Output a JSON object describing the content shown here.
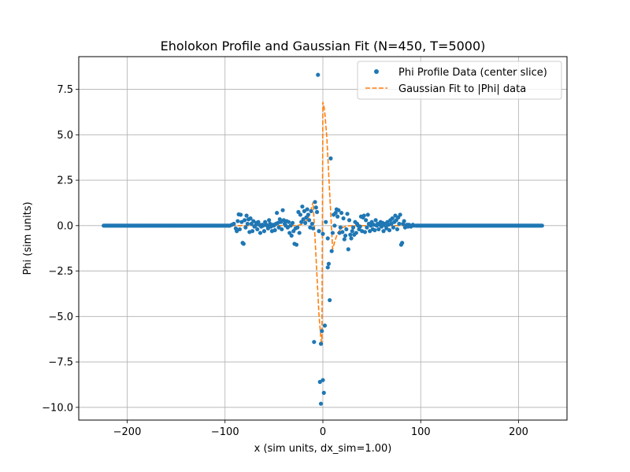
{
  "chart_data": {
    "type": "scatter",
    "title": "Eholokon Profile and Gaussian Fit (N=450, T=5000)",
    "xlabel": "x (sim units, dx_sim=1.00)",
    "ylabel": "Phi (sim units)",
    "xlim": [
      -249.5,
      249.5
    ],
    "ylim": [
      -10.7,
      9.3
    ],
    "xticks": [
      -200,
      -100,
      0,
      100,
      200
    ],
    "yticks": [
      -10.0,
      -7.5,
      -5.0,
      -2.5,
      0.0,
      2.5,
      5.0,
      7.5
    ],
    "grid": true,
    "legend_position": "upper right",
    "colors": {
      "data": "#1f77b4",
      "fit": "#ff7f0e"
    },
    "series": [
      {
        "name": "Phi Profile Data (center slice)",
        "kind": "scatter",
        "baseline": {
          "y": 0.0,
          "x_ranges": [
            [
              -224,
              -95
            ],
            [
              95,
              224
            ]
          ],
          "step": 1
        },
        "points": [
          [
            -93,
            0.05
          ],
          [
            -91,
            0.1
          ],
          [
            -89,
            -0.15
          ],
          [
            -88,
            -0.3
          ],
          [
            -87,
            0.25
          ],
          [
            -86,
            0.62
          ],
          [
            -85,
            -0.2
          ],
          [
            -84,
            0.6
          ],
          [
            -83,
            0.2
          ],
          [
            -82,
            -0.95
          ],
          [
            -81,
            -1.0
          ],
          [
            -80,
            0.3
          ],
          [
            -79,
            -0.1
          ],
          [
            -78,
            0.55
          ],
          [
            -77,
            0.1
          ],
          [
            -76,
            0.35
          ],
          [
            -75,
            -0.35
          ],
          [
            -74,
            0.4
          ],
          [
            -73,
            0.1
          ],
          [
            -72,
            -0.3
          ],
          [
            -71,
            0.25
          ],
          [
            -70,
            -0.05
          ],
          [
            -69,
            0.0
          ],
          [
            -68,
            0.15
          ],
          [
            -67,
            -0.2
          ],
          [
            -66,
            0.2
          ],
          [
            -65,
            0.05
          ],
          [
            -64,
            -0.4
          ],
          [
            -63,
            -0.05
          ],
          [
            -62,
            0.05
          ],
          [
            -61,
            0.0
          ],
          [
            -60,
            -0.3
          ],
          [
            -59,
            0.2
          ],
          [
            -58,
            0.05
          ],
          [
            -57,
            0.0
          ],
          [
            -56,
            -0.15
          ],
          [
            -55,
            0.3
          ],
          [
            -54,
            0.1
          ],
          [
            -53,
            -0.05
          ],
          [
            -52,
            -0.3
          ],
          [
            -51,
            0.05
          ],
          [
            -50,
            0.0
          ],
          [
            -49,
            -0.25
          ],
          [
            -48,
            0.1
          ],
          [
            -47,
            0.7
          ],
          [
            -46,
            0.15
          ],
          [
            -45,
            -0.1
          ],
          [
            -44,
            0.35
          ],
          [
            -43,
            0.2
          ],
          [
            -42,
            -0.2
          ],
          [
            -41,
            0.85
          ],
          [
            -40,
            0.3
          ],
          [
            -39,
            0.1
          ],
          [
            -38,
            0.0
          ],
          [
            -37,
            0.25
          ],
          [
            -36,
            -0.1
          ],
          [
            -35,
            0.2
          ],
          [
            -34,
            -0.4
          ],
          [
            -33,
            0.0
          ],
          [
            -32,
            -0.55
          ],
          [
            -31,
            0.15
          ],
          [
            -30,
            -0.3
          ],
          [
            -29,
            -1.0
          ],
          [
            -28,
            -0.15
          ],
          [
            -27,
            -1.05
          ],
          [
            -26,
            -0.1
          ],
          [
            -25,
            0.75
          ],
          [
            -24,
            -0.4
          ],
          [
            -23,
            0.6
          ],
          [
            -22,
            0.2
          ],
          [
            -21,
            1.05
          ],
          [
            -20,
            0.35
          ],
          [
            -19,
            0.8
          ],
          [
            -18,
            0.15
          ],
          [
            -17,
            0.45
          ],
          [
            -16,
            0.9
          ],
          [
            -15,
            0.6
          ],
          [
            -14,
            0.3
          ],
          [
            -13,
            -0.1
          ],
          [
            -12,
            0.8
          ],
          [
            -11,
            0.1
          ],
          [
            -10,
            -0.15
          ],
          [
            -9,
            -6.4
          ],
          [
            -8,
            1.3
          ],
          [
            -7,
            1.0
          ],
          [
            -6,
            0.75
          ],
          [
            -5,
            8.3
          ],
          [
            -4,
            -0.3
          ],
          [
            -3,
            -8.6
          ],
          [
            -2,
            -6.5
          ],
          [
            -2,
            -9.8
          ],
          [
            -1,
            -5.8
          ],
          [
            0,
            -0.45
          ],
          [
            0,
            -8.5
          ],
          [
            1,
            -9.2
          ],
          [
            2,
            -5.5
          ],
          [
            3,
            0.2
          ],
          [
            5,
            -2.3
          ],
          [
            5,
            -0.7
          ],
          [
            6,
            -2.1
          ],
          [
            7,
            -4.1
          ],
          [
            8,
            3.7
          ],
          [
            9,
            -1.4
          ],
          [
            10,
            -0.4
          ],
          [
            11,
            0.6
          ],
          [
            12,
            0.0
          ],
          [
            13,
            0.7
          ],
          [
            14,
            0.9
          ],
          [
            15,
            0.5
          ],
          [
            16,
            0.85
          ],
          [
            17,
            -0.4
          ],
          [
            18,
            -0.1
          ],
          [
            19,
            0.7
          ],
          [
            20,
            -0.35
          ],
          [
            21,
            0.4
          ],
          [
            22,
            -0.75
          ],
          [
            23,
            -0.55
          ],
          [
            24,
            -0.2
          ],
          [
            25,
            0.65
          ],
          [
            26,
            -1.3
          ],
          [
            27,
            0.3
          ],
          [
            28,
            -0.5
          ],
          [
            29,
            -0.7
          ],
          [
            30,
            -0.3
          ],
          [
            31,
            -0.1
          ],
          [
            32,
            -0.5
          ],
          [
            33,
            0.2
          ],
          [
            34,
            -0.4
          ],
          [
            35,
            0.1
          ],
          [
            36,
            0.0
          ],
          [
            37,
            -0.2
          ],
          [
            38,
            -0.05
          ],
          [
            39,
            0.5
          ],
          [
            40,
            -0.3
          ],
          [
            41,
            0.45
          ],
          [
            42,
            0.55
          ],
          [
            43,
            -0.35
          ],
          [
            44,
            0.3
          ],
          [
            45,
            -0.1
          ],
          [
            46,
            0.6
          ],
          [
            47,
            0.1
          ],
          [
            48,
            -0.3
          ],
          [
            49,
            0.0
          ],
          [
            50,
            0.2
          ],
          [
            51,
            -0.2
          ],
          [
            52,
            0.05
          ],
          [
            53,
            -0.25
          ],
          [
            54,
            0.3
          ],
          [
            55,
            0.0
          ],
          [
            56,
            0.1
          ],
          [
            57,
            -0.2
          ],
          [
            58,
            0.05
          ],
          [
            59,
            0.2
          ],
          [
            60,
            -0.05
          ],
          [
            61,
            0.15
          ],
          [
            62,
            -0.3
          ],
          [
            63,
            0.1
          ],
          [
            64,
            0.0
          ],
          [
            65,
            -0.15
          ],
          [
            66,
            0.2
          ],
          [
            67,
            0.05
          ],
          [
            68,
            -0.25
          ],
          [
            69,
            0.3
          ],
          [
            70,
            0.1
          ],
          [
            71,
            0.4
          ],
          [
            72,
            -0.1
          ],
          [
            73,
            0.2
          ],
          [
            74,
            0.55
          ],
          [
            75,
            0.3
          ],
          [
            76,
            -0.2
          ],
          [
            77,
            0.45
          ],
          [
            78,
            0.1
          ],
          [
            79,
            0.6
          ],
          [
            80,
            -1.05
          ],
          [
            81,
            -0.95
          ],
          [
            82,
            0.1
          ],
          [
            83,
            0.25
          ],
          [
            84,
            -0.1
          ],
          [
            85,
            0.0
          ],
          [
            86,
            0.05
          ],
          [
            87,
            -0.05
          ],
          [
            88,
            0.05
          ],
          [
            89,
            0.0
          ],
          [
            90,
            -0.05
          ],
          [
            91,
            0.0
          ],
          [
            92,
            0.05
          ],
          [
            93,
            0.0
          ]
        ]
      },
      {
        "name": "Gaussian Fit to |Phi| data",
        "kind": "line",
        "style": "dashed",
        "x": [
          -224,
          -30,
          -25,
          -20,
          -15,
          -12,
          -10,
          -8,
          -6,
          -4,
          -2,
          -1,
          0,
          1,
          2,
          4,
          6,
          8,
          10,
          12,
          15,
          20,
          25,
          30,
          224
        ],
        "y": [
          0.0,
          0.0,
          0.02,
          0.1,
          0.4,
          0.9,
          1.3,
          -0.7,
          -2.8,
          -4.9,
          -6.2,
          -6.6,
          6.8,
          6.6,
          6.2,
          4.9,
          2.8,
          0.7,
          -1.3,
          -0.9,
          -0.4,
          -0.1,
          -0.02,
          0.0,
          0.0
        ]
      }
    ]
  }
}
